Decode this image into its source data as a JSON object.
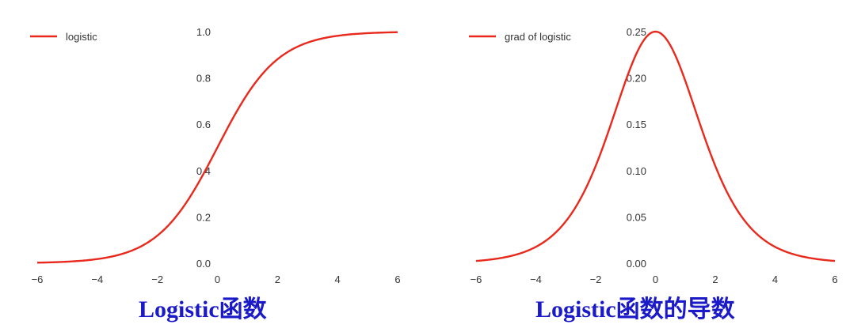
{
  "colors": {
    "line": "#e8291c",
    "text": "#333333",
    "caption": "#1a1ac8"
  },
  "chart_data": [
    {
      "type": "line",
      "title": "",
      "xlabel": "",
      "ylabel": "",
      "legend_position": "top-left",
      "grid": false,
      "xlim": [
        -6,
        6
      ],
      "ylim": [
        0,
        1
      ],
      "x_ticks": [
        -6,
        -4,
        -2,
        0,
        2,
        4,
        6
      ],
      "x_tick_labels": [
        "−6",
        "−4",
        "−2",
        "0",
        "2",
        "4",
        "6"
      ],
      "y_ticks": [
        0,
        0.2,
        0.4,
        0.6,
        0.8,
        1
      ],
      "y_tick_labels": [
        "0.0",
        "0.2",
        "0.4",
        "0.6",
        "0.8",
        "1.0"
      ],
      "series": [
        {
          "name": "logistic",
          "x": [
            -6,
            -5,
            -4,
            -3,
            -2,
            -1.5,
            -1,
            -0.5,
            0,
            0.5,
            1,
            1.5,
            2,
            3,
            4,
            5,
            6
          ],
          "y": [
            0.0025,
            0.0067,
            0.018,
            0.047,
            0.119,
            0.182,
            0.269,
            0.378,
            0.5,
            0.622,
            0.731,
            0.818,
            0.881,
            0.953,
            0.982,
            0.9933,
            0.9975
          ]
        }
      ],
      "caption": "Logistic函数"
    },
    {
      "type": "line",
      "title": "",
      "xlabel": "",
      "ylabel": "",
      "legend_position": "top-left",
      "grid": false,
      "xlim": [
        -6,
        6
      ],
      "ylim": [
        0,
        0.25
      ],
      "x_ticks": [
        -6,
        -4,
        -2,
        0,
        2,
        4,
        6
      ],
      "x_tick_labels": [
        "−6",
        "−4",
        "−2",
        "0",
        "2",
        "4",
        "6"
      ],
      "y_ticks": [
        0,
        0.05,
        0.1,
        0.15,
        0.2,
        0.25
      ],
      "y_tick_labels": [
        "0.00",
        "0.05",
        "0.10",
        "0.15",
        "0.20",
        "0.25"
      ],
      "series": [
        {
          "name": "grad of logistic",
          "x": [
            -6,
            -5,
            -4,
            -3,
            -2,
            -1.5,
            -1,
            -0.5,
            0,
            0.5,
            1,
            1.5,
            2,
            3,
            4,
            5,
            6
          ],
          "y": [
            0.0025,
            0.0066,
            0.0177,
            0.0452,
            0.105,
            0.149,
            0.197,
            0.235,
            0.25,
            0.235,
            0.197,
            0.149,
            0.105,
            0.0452,
            0.0177,
            0.0066,
            0.0025
          ]
        }
      ],
      "caption": "Logistic函数的导数"
    }
  ]
}
